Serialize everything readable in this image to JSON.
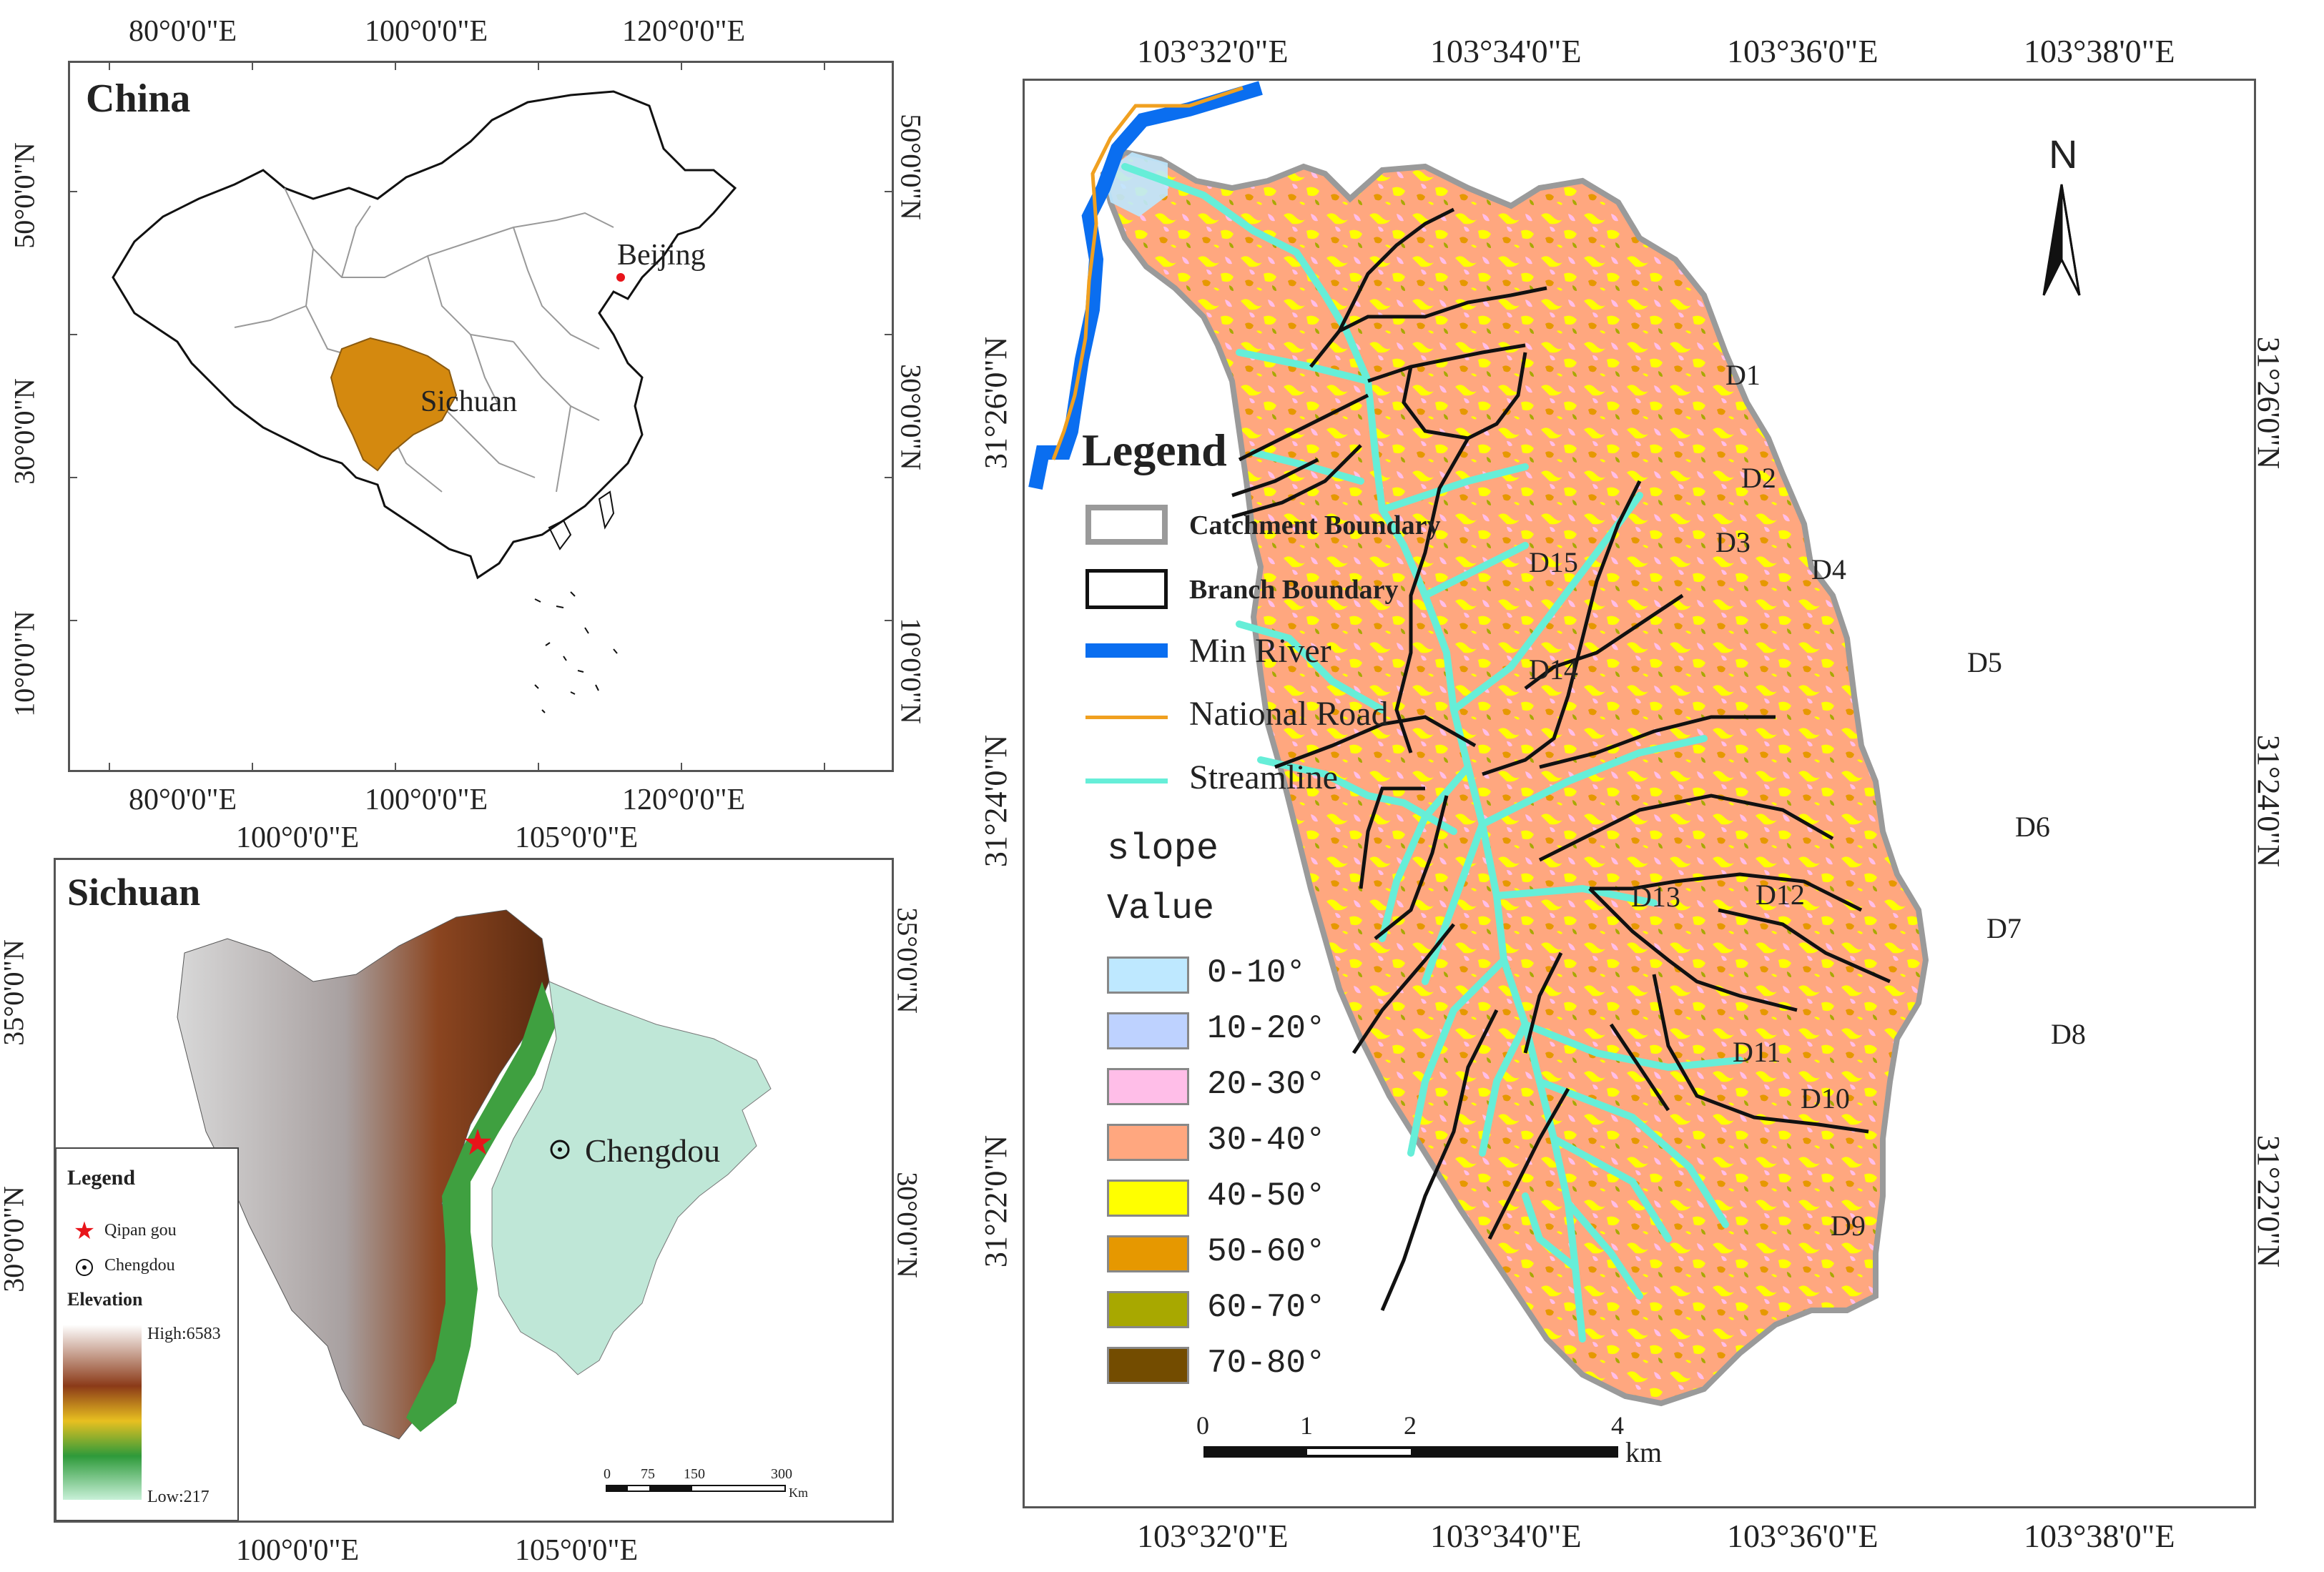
{
  "china_map": {
    "title": "China",
    "top_ticks": [
      "80°0'0\"E",
      "100°0'0\"E",
      "120°0'0\"E"
    ],
    "bottom_ticks": [
      "80°0'0\"E",
      "100°0'0\"E",
      "120°0'0\"E"
    ],
    "left_ticks": [
      "50°0'0\"N",
      "30°0'0\"N",
      "10°0'0\"N"
    ],
    "right_ticks": [
      "50°0'0\"N",
      "30°0'0\"N",
      "10°0'0\"N"
    ],
    "labels": {
      "beijing": "Beijing",
      "sichuan": "Sichuan"
    },
    "colors": {
      "sichuan_fill": "#D4890F"
    }
  },
  "sichuan_map": {
    "title": "Sichuan",
    "top_ticks": [
      "100°0'0\"E",
      "105°0'0\"E"
    ],
    "bottom_ticks": [
      "100°0'0\"E",
      "105°0'0\"E"
    ],
    "left_ticks": [
      "35°0'0\"N",
      "30°0'0\"N"
    ],
    "right_ticks": [
      "35°0'0\"N",
      "30°0'0\"N"
    ],
    "city_label": "Chengdou",
    "legend": {
      "title": "Legend",
      "items": [
        "Qipan gou",
        "Chengdou"
      ],
      "elevation_title": "Elevation",
      "high": "High:6583",
      "low": "Low:217"
    },
    "scale": {
      "ticks": [
        "0",
        "75",
        "150",
        "300"
      ],
      "unit": "Km"
    },
    "colors": {
      "star": "#E8141A"
    }
  },
  "catchment_map": {
    "top_ticks": [
      "103°32'0\"E",
      "103°34'0\"E",
      "103°36'0\"E",
      "103°38'0\"E"
    ],
    "bottom_ticks": [
      "103°32'0\"E",
      "103°34'0\"E",
      "103°36'0\"E",
      "103°38'0\"E"
    ],
    "left_ticks": [
      "31°26'0\"N",
      "31°24'0\"N",
      "31°22'0\"N"
    ],
    "right_ticks": [
      "31°26'0\"N",
      "31°24'0\"N",
      "31°22'0\"N"
    ],
    "north": "N",
    "legend": {
      "title": "Legend",
      "lines": [
        "Catchment Boundary",
        "Branch Boundary",
        "Min River",
        "National Road",
        "Streamline"
      ],
      "slope_title": "slope",
      "value_title": "Value",
      "classes": [
        "0-10°",
        "10-20°",
        "20-30°",
        "30-40°",
        "40-50°",
        "50-60°",
        "60-70°",
        "70-80°"
      ],
      "class_colors": [
        "#BEE8FF",
        "#BED2FF",
        "#FFBEE8",
        "#FFA77F",
        "#FFFF00",
        "#E69800",
        "#A8A800",
        "#734C00"
      ]
    },
    "branches": [
      "D1",
      "D2",
      "D3",
      "D4",
      "D5",
      "D6",
      "D7",
      "D8",
      "D9",
      "D10",
      "D11",
      "D12",
      "D13",
      "D14",
      "D15"
    ],
    "scale": {
      "ticks": [
        "0",
        "1",
        "2",
        "4"
      ],
      "unit": "km"
    },
    "colors": {
      "river": "#0A6EF0",
      "road": "#F0A020",
      "stream": "#66EED8",
      "boundary": "#9A9A9A"
    }
  }
}
